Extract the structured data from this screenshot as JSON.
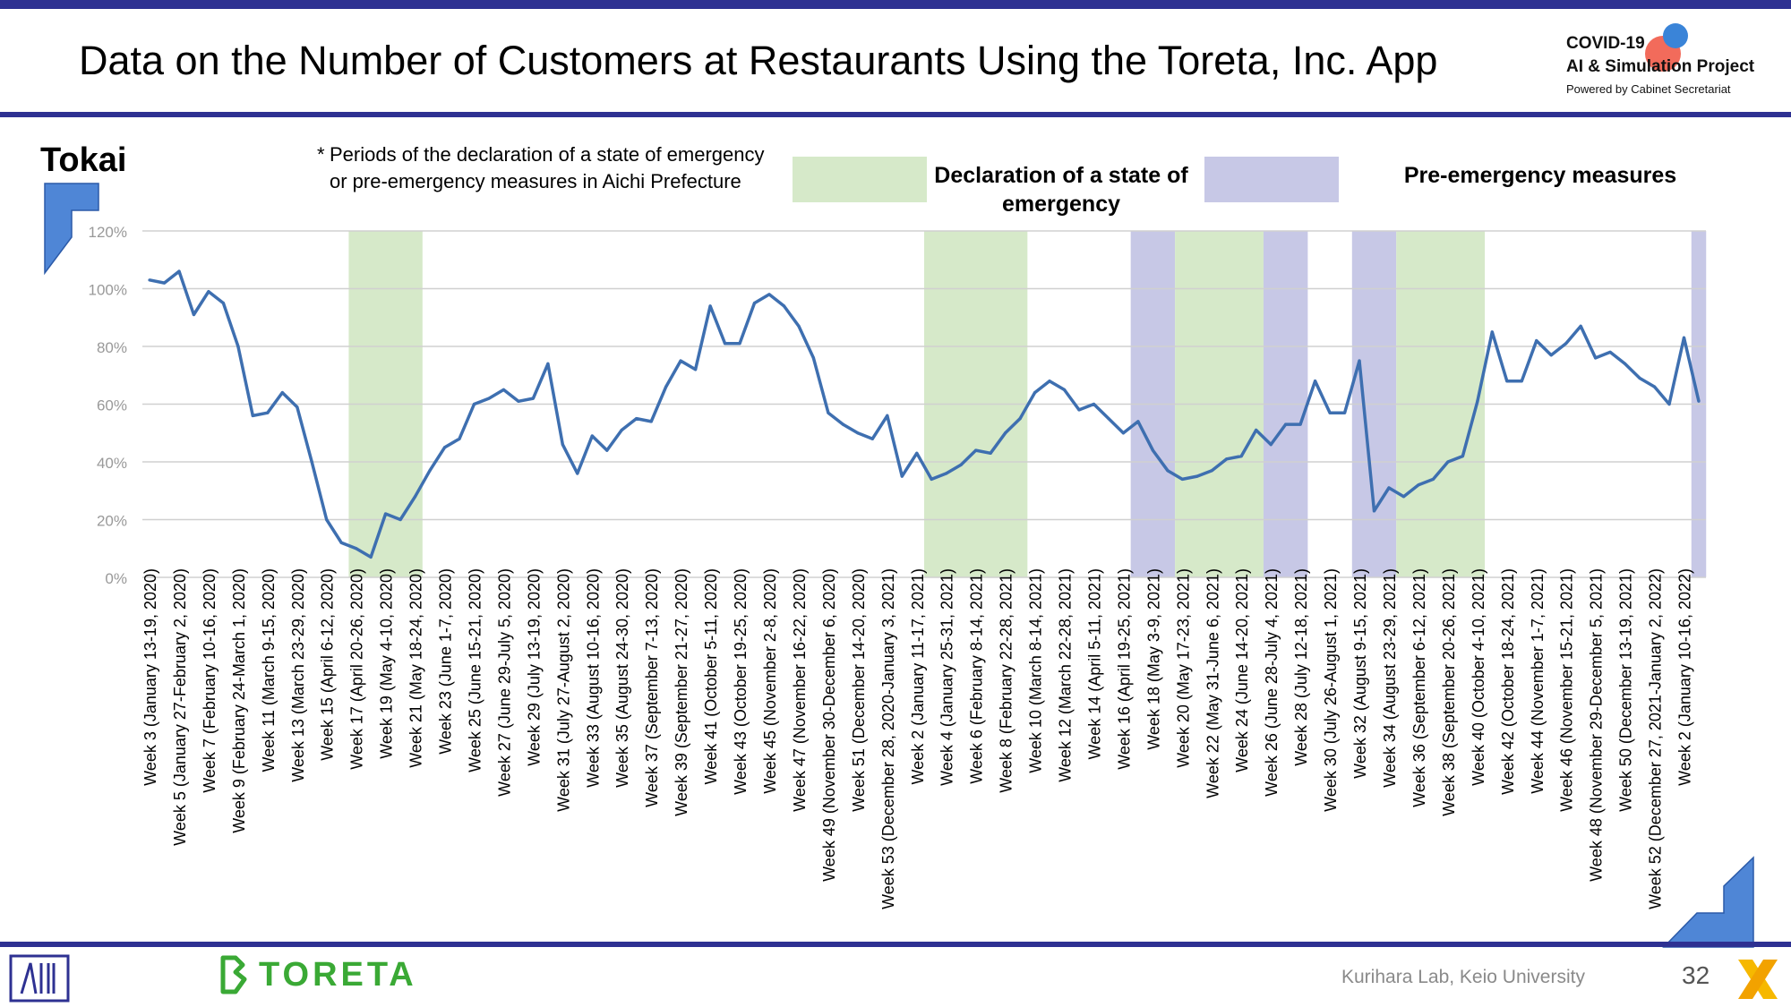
{
  "title": "Data on the Number of Customers at Restaurants Using the Toreta, Inc. App",
  "logo": {
    "line1": "COVID-19",
    "line2": "AI & Simulation Project",
    "line3": "Powered by Cabinet Secretariat"
  },
  "region": "Tokai",
  "note": {
    "star": "*",
    "text": "Periods of the declaration of a state of emergency or pre-emergency measures in Aichi Prefecture"
  },
  "legend": {
    "emergency": "Declaration of a state of emergency",
    "pre_emergency": "Pre-emergency measures"
  },
  "colors": {
    "line": "#3e6fb0",
    "emergency_fill": "#d6e9c9",
    "pre_emergency_fill": "#c7c8e6",
    "grid": "#d0d0d0",
    "brand_bar": "#2e3192",
    "toreta_green": "#3aa935"
  },
  "footer": {
    "brand": "TORETA",
    "lab": "Kurihara Lab, Keio University",
    "page": "32"
  },
  "chart_data": {
    "type": "line",
    "title": "",
    "xlabel": "",
    "ylabel": "",
    "ylim": [
      0,
      120
    ],
    "y_ticks": [
      "0%",
      "20%",
      "40%",
      "60%",
      "80%",
      "100%",
      "120%"
    ],
    "grid": true,
    "series": [
      {
        "values": [
          103,
          102,
          106,
          91,
          99,
          95,
          80,
          56,
          57,
          64,
          59,
          40,
          20,
          12,
          10,
          7,
          22,
          20,
          28,
          37,
          45,
          48,
          60,
          62,
          65,
          61,
          62,
          74,
          46,
          36,
          49,
          44,
          51,
          55,
          54,
          66,
          75,
          72,
          94,
          81,
          81,
          95,
          98,
          94,
          87,
          76,
          57,
          53,
          50,
          48,
          56,
          35,
          43,
          34,
          36,
          39,
          44,
          43,
          50,
          55,
          64,
          68,
          65,
          58,
          60,
          55,
          50,
          54,
          44,
          37,
          34,
          35,
          37,
          41,
          42,
          51,
          46,
          53,
          53,
          68,
          57,
          57,
          75,
          23,
          31,
          28,
          32,
          34,
          40,
          42,
          61,
          85,
          68,
          68,
          82,
          77,
          81,
          87,
          76,
          78,
          74,
          69,
          66,
          60,
          83,
          61
        ]
      }
    ],
    "x_tick_labels": [
      "Week 3 (January 13-19, 2020)",
      "Week 5 (January 27-February 2, 2020)",
      "Week 7 (February 10-16, 2020)",
      "Week 9 (February 24-March 1, 2020)",
      "Week 11 (March 9-15, 2020)",
      "Week 13 (March 23-29, 2020)",
      "Week 15 (April 6-12, 2020)",
      "Week 17 (April 20-26, 2020)",
      "Week 19 (May 4-10, 2020)",
      "Week 21 (May 18-24, 2020)",
      "Week 23 (June 1-7, 2020)",
      "Week 25 (June 15-21, 2020)",
      "Week 27 (June 29-July 5, 2020)",
      "Week 29 (July 13-19, 2020)",
      "Week 31 (July 27-August 2, 2020)",
      "Week 33 (August 10-16, 2020)",
      "Week 35 (August 24-30, 2020)",
      "Week 37 (September 7-13, 2020)",
      "Week 39 (September 21-27, 2020)",
      "Week 41 (October 5-11, 2020)",
      "Week 43 (October 19-25, 2020)",
      "Week 45 (November 2-8, 2020)",
      "Week 47 (November 16-22, 2020)",
      "Week 49 (November 30-December 6, 2020)",
      "Week 51 (December 14-20, 2020)",
      "Week 53 (December 28, 2020-January 3, 2021)",
      "Week 2 (January 11-17, 2021)",
      "Week 4 (January 25-31, 2021)",
      "Week 6 (February 8-14, 2021)",
      "Week 8 (February 22-28, 2021)",
      "Week 10 (March 8-14, 2021)",
      "Week 12 (March 22-28, 2021)",
      "Week 14 (April 5-11, 2021)",
      "Week 16 (April 19-25, 2021)",
      "Week 18 (May 3-9, 2021)",
      "Week 20 (May 17-23, 2021)",
      "Week 22 (May 31-June 6, 2021)",
      "Week 24 (June 14-20, 2021)",
      "Week 26 (June 28-July 4, 2021)",
      "Week 28 (July 12-18, 2021)",
      "Week 30 (July 26-August 1, 2021)",
      "Week 32 (August 9-15, 2021)",
      "Week 34 (August 23-29, 2021)",
      "Week 36 (September 6-12, 2021)",
      "Week 38 (September 20-26, 2021)",
      "Week 40 (October 4-10, 2021)",
      "Week 42 (October 18-24, 2021)",
      "Week 44 (November 1-7, 2021)",
      "Week 46 (November 15-21, 2021)",
      "Week 48 (November 29-December 5, 2021)",
      "Week 50 (December 13-19, 2021)",
      "Week 52 (December 27, 2021-January 2, 2022)",
      "Week 2 (January 10-16, 2022)"
    ],
    "x_tick_every": 2,
    "shaded_periods": [
      {
        "kind": "emergency",
        "start_index": 13.5,
        "end_index": 18.5
      },
      {
        "kind": "emergency",
        "start_index": 52.5,
        "end_index": 59.5
      },
      {
        "kind": "pre_emergency",
        "start_index": 66.5,
        "end_index": 69.5
      },
      {
        "kind": "emergency",
        "start_index": 69.5,
        "end_index": 75.5
      },
      {
        "kind": "pre_emergency",
        "start_index": 75.5,
        "end_index": 78.5
      },
      {
        "kind": "pre_emergency",
        "start_index": 81.5,
        "end_index": 84.5
      },
      {
        "kind": "emergency",
        "start_index": 84.5,
        "end_index": 90.5
      },
      {
        "kind": "pre_emergency",
        "start_index": 104.5,
        "end_index": 105.5
      }
    ]
  }
}
